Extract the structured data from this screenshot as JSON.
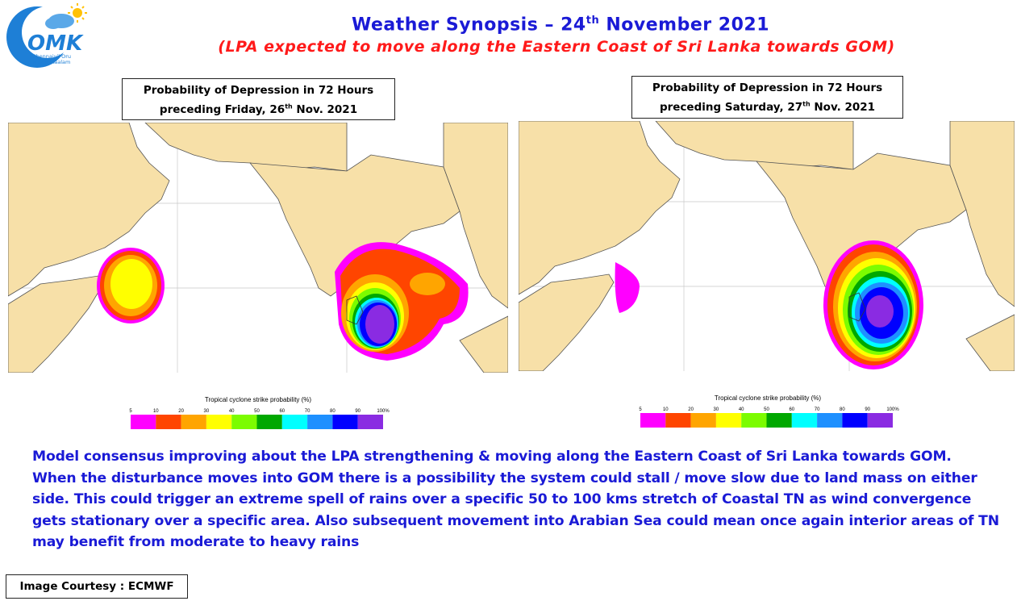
{
  "header": {
    "title_main": "Weather Synopsis – 24",
    "title_sup": "th",
    "title_end": " November 2021",
    "subtitle": "(LPA expected to move along the Eastern Coast of Sri Lanka towards GOM)"
  },
  "logo": {
    "text": "OMK",
    "tagline_1": "Chennaiyil Oru",
    "tagline_2": "Mazhaikaalam"
  },
  "maps": [
    {
      "caption_line1": "Probability of Depression in 72 Hours",
      "caption_line2_pre": "preceding Friday, 26",
      "caption_line2_sup": "th",
      "caption_line2_post": " Nov. 2021"
    },
    {
      "caption_line1": "Probability of Depression in 72 Hours",
      "caption_line2_pre": "preceding Saturday, 27",
      "caption_line2_sup": "th",
      "caption_line2_post": " Nov. 2021"
    }
  ],
  "legend": {
    "title": "Tropical cyclone strike probability (%)",
    "ticks": [
      "5",
      "10",
      "20",
      "30",
      "40",
      "50",
      "60",
      "70",
      "80",
      "90",
      "100%"
    ],
    "colors": [
      "#ff00ff",
      "#ff4500",
      "#ffa500",
      "#ffff00",
      "#7cfc00",
      "#00a800",
      "#00ffff",
      "#1e90ff",
      "#0000ff",
      "#8a2be2"
    ]
  },
  "colors": {
    "land": "#f7e0a8",
    "sea": "#ffffff",
    "title_blue": "#1a1ad6",
    "subtitle_red": "#ff1a1a"
  },
  "body_text": "Model consensus improving about the LPA strengthening & moving along the Eastern Coast of Sri Lanka towards GOM. When the disturbance moves into GOM there is a possibility the system could stall / move slow due to land mass on either side. This could trigger an extreme spell of rains over a specific 50 to 100 kms stretch of Coastal TN as wind convergence gets stationary over a specific area. Also subsequent movement into Arabian Sea could mean once again interior areas of TN may benefit from moderate to heavy rains",
  "courtesy": "Image Courtesy : ECMWF"
}
